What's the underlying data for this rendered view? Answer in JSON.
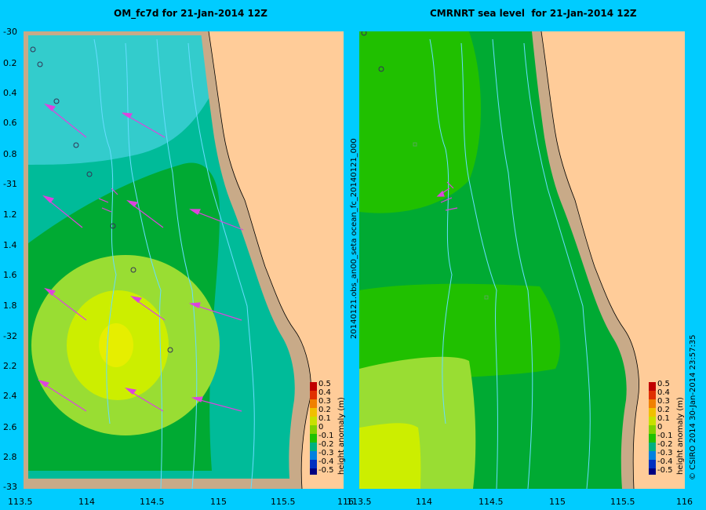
{
  "left_panel": {
    "title": "OM_fc7d for 21-Jan-2014 12Z",
    "y_ticks": [
      "-30",
      "0.2",
      "0.4",
      "0.6",
      "0.8",
      "-31",
      "1.2",
      "1.4",
      "1.6",
      "1.8",
      "-32",
      "2.2",
      "2.4",
      "2.6",
      "2.8",
      "-33"
    ],
    "x_ticks": [
      "113.5",
      "114",
      "114.5",
      "115",
      "115.5",
      "116"
    ]
  },
  "right_panel": {
    "title": "CMRNRT sea level  for 21-Jan-2014 12Z",
    "x_ticks": [
      "113.5",
      "114",
      "114.5",
      "115",
      "115.5",
      "116"
    ],
    "side_label": "20140121.obs_an00_seta   ocean_fc_20140121_000"
  },
  "colorbar": {
    "title": "height anomaly (m)",
    "levels": [
      "0.5",
      "0.4",
      "0.3",
      "0.2",
      "0.1",
      "0",
      "-0.1",
      "-0.2",
      "-0.3",
      "-0.4",
      "-0.5"
    ],
    "colors": [
      "#c00000",
      "#e03000",
      "#f08000",
      "#f0c000",
      "#c8e000",
      "#80d000",
      "#20c000",
      "#00b080",
      "#0080e0",
      "#0030c0",
      "#000080"
    ]
  },
  "credit": "© CSIRO 2014  30-Jan-2014 23:57:35",
  "colors": {
    "background": "#00ccff",
    "land": "#ffcc99",
    "shelf": "#c8aa88",
    "cyan_field": "#33cccc",
    "teal_field": "#00bb99",
    "green_field": "#00aa33",
    "lime_field": "#99dd33",
    "yellow_field": "#ccee00",
    "contour": "#66ddff",
    "arrow": "#dd44dd"
  }
}
